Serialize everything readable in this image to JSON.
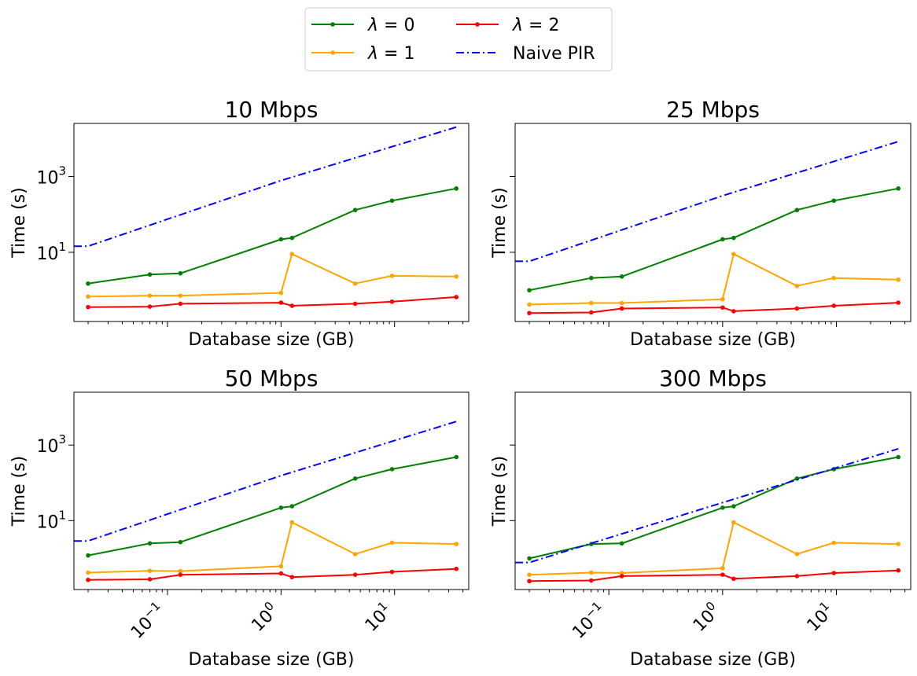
{
  "legend": {
    "placement": "top-center",
    "entries": [
      {
        "symbol": "λ",
        "rel": " = ",
        "value": "0",
        "text": "",
        "color": "#008000",
        "dash": "solid",
        "marker": true
      },
      {
        "symbol": "λ",
        "rel": " = ",
        "value": "1",
        "text": "",
        "color": "#ffa500",
        "dash": "solid",
        "marker": true
      },
      {
        "symbol": "λ",
        "rel": " = ",
        "value": "2",
        "text": "",
        "color": "#ff0000",
        "dash": "solid",
        "marker": true
      },
      {
        "symbol": "",
        "rel": "",
        "value": "",
        "text": "Naive PIR",
        "color": "#0000ff",
        "dash": "dashdot",
        "marker": false
      }
    ]
  },
  "chart_data": [
    {
      "type": "line",
      "title": "10 Mbps",
      "xlabel": "Database size (GB)",
      "ylabel": "Time (s)",
      "xscale": "log",
      "yscale": "log",
      "xlim": [
        0.015,
        45
      ],
      "ylim": [
        0.15,
        25000
      ],
      "x_ticks": [
        {
          "value": 0.1,
          "base": "10",
          "exp": "−1"
        },
        {
          "value": 1,
          "base": "10",
          "exp": "0"
        },
        {
          "value": 10,
          "base": "10",
          "exp": "1"
        }
      ],
      "y_ticks": [
        {
          "value": 10,
          "base": "10",
          "exp": "1"
        },
        {
          "value": 1000,
          "base": "10",
          "exp": "3"
        }
      ],
      "show_xticklabels": false,
      "show_yticklabels": true,
      "series": [
        {
          "x": [
            0.02,
            0.07,
            0.13,
            1.0,
            1.25,
            4.5,
            9.5,
            35
          ],
          "y": [
            1.5,
            2.6,
            2.8,
            22,
            24,
            130,
            230,
            480
          ]
        },
        {
          "x": [
            0.02,
            0.07,
            0.13,
            1.0,
            1.25,
            4.5,
            9.5,
            35
          ],
          "y": [
            0.68,
            0.72,
            0.72,
            0.85,
            9.0,
            1.5,
            2.4,
            2.3
          ]
        },
        {
          "x": [
            0.02,
            0.07,
            0.13,
            1.0,
            1.25,
            4.5,
            9.5,
            35
          ],
          "y": [
            0.36,
            0.37,
            0.44,
            0.47,
            0.39,
            0.44,
            0.5,
            0.66
          ]
        },
        {
          "x": [
            0.015,
            0.02,
            1.0,
            35
          ],
          "y": [
            14.5,
            14.5,
            780,
            20000
          ]
        }
      ]
    },
    {
      "type": "line",
      "title": "25 Mbps",
      "xlabel": "Database size (GB)",
      "ylabel": "Time (s)",
      "xscale": "log",
      "yscale": "log",
      "xlim": [
        0.015,
        45
      ],
      "ylim": [
        0.15,
        25000
      ],
      "x_ticks": [
        {
          "value": 0.1,
          "base": "10",
          "exp": "−1"
        },
        {
          "value": 1,
          "base": "10",
          "exp": "0"
        },
        {
          "value": 10,
          "base": "10",
          "exp": "1"
        }
      ],
      "y_ticks": [
        {
          "value": 10,
          "base": "10",
          "exp": "1"
        },
        {
          "value": 1000,
          "base": "10",
          "exp": "3"
        }
      ],
      "show_xticklabels": false,
      "show_yticklabels": false,
      "series": [
        {
          "x": [
            0.02,
            0.07,
            0.13,
            1.0,
            1.25,
            4.5,
            9.5,
            35
          ],
          "y": [
            1.0,
            2.1,
            2.3,
            22,
            24,
            130,
            230,
            480
          ]
        },
        {
          "x": [
            0.02,
            0.07,
            0.13,
            1.0,
            1.25,
            4.5,
            9.5,
            35
          ],
          "y": [
            0.42,
            0.46,
            0.46,
            0.58,
            9.0,
            1.3,
            2.1,
            1.9
          ]
        },
        {
          "x": [
            0.02,
            0.07,
            0.13,
            1.0,
            1.25,
            4.5,
            9.5,
            35
          ],
          "y": [
            0.25,
            0.26,
            0.33,
            0.35,
            0.28,
            0.33,
            0.39,
            0.47
          ]
        },
        {
          "x": [
            0.015,
            0.02,
            1.0,
            35
          ],
          "y": [
            5.8,
            5.8,
            310,
            8300
          ]
        }
      ]
    },
    {
      "type": "line",
      "title": "50 Mbps",
      "xlabel": "Database size (GB)",
      "ylabel": "Time (s)",
      "xscale": "log",
      "yscale": "log",
      "xlim": [
        0.015,
        45
      ],
      "ylim": [
        0.15,
        25000
      ],
      "x_ticks": [
        {
          "value": 0.1,
          "base": "10",
          "exp": "−1"
        },
        {
          "value": 1,
          "base": "10",
          "exp": "0"
        },
        {
          "value": 10,
          "base": "10",
          "exp": "1"
        }
      ],
      "y_ticks": [
        {
          "value": 10,
          "base": "10",
          "exp": "1"
        },
        {
          "value": 1000,
          "base": "10",
          "exp": "3"
        }
      ],
      "show_xticklabels": true,
      "show_yticklabels": true,
      "series": [
        {
          "x": [
            0.02,
            0.07,
            0.13,
            1.0,
            1.25,
            4.5,
            9.5,
            35
          ],
          "y": [
            1.2,
            2.5,
            2.7,
            22,
            24,
            130,
            230,
            480
          ]
        },
        {
          "x": [
            0.02,
            0.07,
            0.13,
            1.0,
            1.25,
            4.5,
            9.5,
            35
          ],
          "y": [
            0.42,
            0.47,
            0.46,
            0.62,
            9.0,
            1.3,
            2.6,
            2.4
          ]
        },
        {
          "x": [
            0.02,
            0.07,
            0.13,
            1.0,
            1.25,
            4.5,
            9.5,
            35
          ],
          "y": [
            0.27,
            0.28,
            0.37,
            0.4,
            0.32,
            0.37,
            0.44,
            0.53
          ]
        },
        {
          "x": [
            0.015,
            0.02,
            1.0,
            35
          ],
          "y": [
            2.9,
            2.9,
            155,
            4200
          ]
        }
      ]
    },
    {
      "type": "line",
      "title": "300 Mbps",
      "xlabel": "Database size (GB)",
      "ylabel": "Time (s)",
      "xscale": "log",
      "yscale": "log",
      "xlim": [
        0.015,
        45
      ],
      "ylim": [
        0.15,
        25000
      ],
      "x_ticks": [
        {
          "value": 0.1,
          "base": "10",
          "exp": "−1"
        },
        {
          "value": 1,
          "base": "10",
          "exp": "0"
        },
        {
          "value": 10,
          "base": "10",
          "exp": "1"
        }
      ],
      "y_ticks": [
        {
          "value": 10,
          "base": "10",
          "exp": "1"
        },
        {
          "value": 1000,
          "base": "10",
          "exp": "3"
        }
      ],
      "show_xticklabels": true,
      "show_yticklabels": false,
      "series": [
        {
          "x": [
            0.02,
            0.07,
            0.13,
            1.0,
            1.25,
            4.5,
            9.5,
            35
          ],
          "y": [
            1.0,
            2.4,
            2.5,
            22,
            24,
            130,
            230,
            480
          ]
        },
        {
          "x": [
            0.02,
            0.07,
            0.13,
            1.0,
            1.25,
            4.5,
            9.5,
            35
          ],
          "y": [
            0.37,
            0.42,
            0.41,
            0.55,
            9.0,
            1.3,
            2.6,
            2.4
          ]
        },
        {
          "x": [
            0.02,
            0.07,
            0.13,
            1.0,
            1.25,
            4.5,
            9.5,
            35
          ],
          "y": [
            0.25,
            0.26,
            0.34,
            0.37,
            0.29,
            0.34,
            0.41,
            0.48
          ]
        },
        {
          "x": [
            0.015,
            0.02,
            1.0,
            35
          ],
          "y": [
            0.78,
            0.78,
            30,
            800
          ]
        }
      ]
    }
  ]
}
